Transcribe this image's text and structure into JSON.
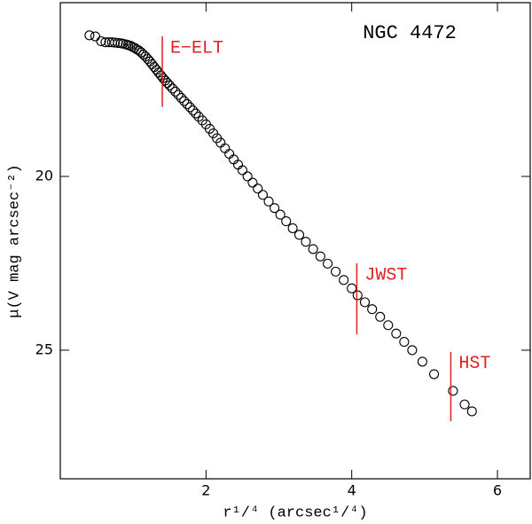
{
  "chart_data": {
    "type": "scatter",
    "title": "NGC 4472",
    "xlabel": "r¹/⁴ (arcsec¹/⁴)",
    "ylabel": "μ(V mag arcsec⁻²)",
    "xlim": [
      0,
      6.45
    ],
    "ylim": [
      28.7,
      15
    ],
    "xticks": [
      2,
      4,
      6
    ],
    "yticks": [
      20,
      25
    ],
    "color": "#000000",
    "x": [
      0.4,
      0.48,
      0.56,
      0.62,
      0.67,
      0.71,
      0.75,
      0.79,
      0.83,
      0.86,
      0.9,
      0.93,
      0.96,
      0.99,
      1.02,
      1.05,
      1.08,
      1.11,
      1.14,
      1.17,
      1.2,
      1.23,
      1.26,
      1.29,
      1.32,
      1.35,
      1.38,
      1.41,
      1.44,
      1.47,
      1.5,
      1.54,
      1.58,
      1.62,
      1.66,
      1.7,
      1.74,
      1.78,
      1.82,
      1.86,
      1.9,
      1.95,
      2.0,
      2.05,
      2.1,
      2.15,
      2.2,
      2.26,
      2.32,
      2.38,
      2.44,
      2.5,
      2.57,
      2.64,
      2.71,
      2.78,
      2.86,
      2.94,
      3.02,
      3.1,
      3.19,
      3.28,
      3.37,
      3.47,
      3.57,
      3.67,
      3.78,
      3.89,
      4.0,
      4.08,
      4.18,
      4.28,
      4.39,
      4.5,
      4.61,
      4.72,
      4.83,
      4.97,
      5.13,
      5.39,
      5.55,
      5.65
    ],
    "values": [
      15.94,
      15.97,
      16.11,
      16.14,
      16.14,
      16.14,
      16.15,
      16.16,
      16.17,
      16.18,
      16.2,
      16.22,
      16.24,
      16.27,
      16.3,
      16.34,
      16.38,
      16.43,
      16.49,
      16.55,
      16.62,
      16.69,
      16.77,
      16.85,
      16.93,
      17.01,
      17.09,
      17.17,
      17.24,
      17.31,
      17.38,
      17.47,
      17.56,
      17.65,
      17.74,
      17.83,
      17.92,
      18.01,
      18.1,
      18.19,
      18.28,
      18.39,
      18.5,
      18.63,
      18.76,
      18.9,
      19.03,
      19.19,
      19.35,
      19.51,
      19.66,
      19.82,
      20.0,
      20.18,
      20.35,
      20.53,
      20.72,
      20.91,
      21.1,
      21.29,
      21.49,
      21.68,
      21.88,
      22.09,
      22.3,
      22.51,
      22.74,
      22.98,
      23.22,
      23.42,
      23.62,
      23.82,
      24.04,
      24.28,
      24.52,
      24.76,
      25.0,
      25.33,
      25.69,
      26.17,
      26.56,
      26.76
    ],
    "annotations": [
      {
        "label": "E−ELT",
        "x": 1.4,
        "y": [
          15.97,
          18.0
        ],
        "color": "#e02020"
      },
      {
        "label": "JWST",
        "x": 4.07,
        "y": [
          22.5,
          24.54
        ],
        "color": "#e02020"
      },
      {
        "label": "HST",
        "x": 5.36,
        "y": [
          25.05,
          27.04
        ],
        "color": "#e02020"
      }
    ]
  }
}
